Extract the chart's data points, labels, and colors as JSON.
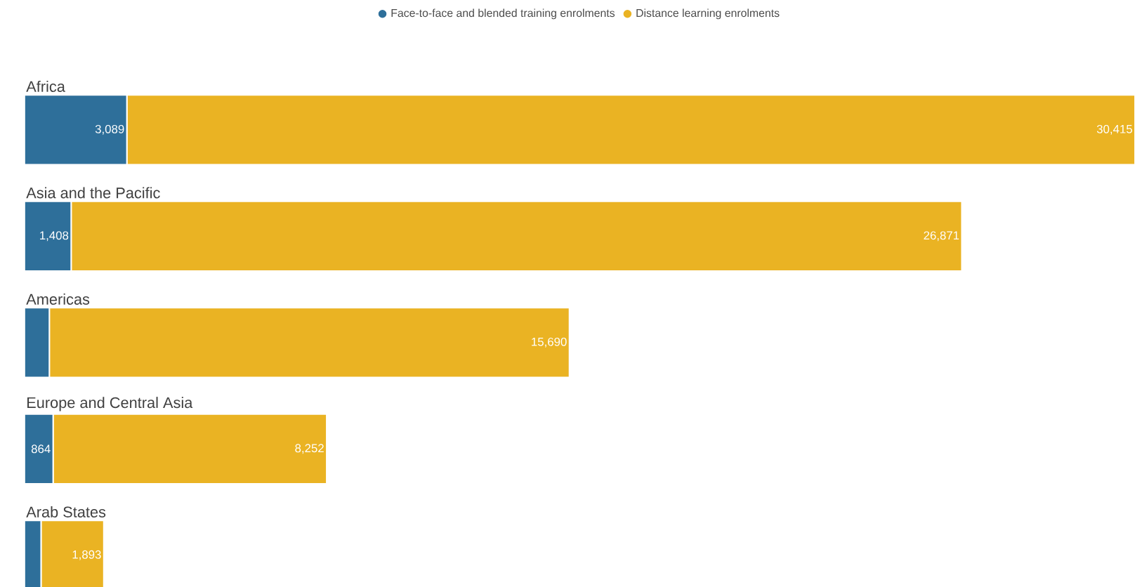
{
  "chart_data": {
    "type": "bar",
    "orientation": "horizontal",
    "stacked": true,
    "legend": "top",
    "categories": [
      "Africa",
      "Asia and the Pacific",
      "Americas",
      "Europe and Central Asia",
      "Arab States"
    ],
    "series": [
      {
        "name": "Face-to-face and blended training enrolments",
        "color": "#2e6f9a",
        "values": [
          3089,
          1408,
          750,
          864,
          500
        ],
        "value_labels": [
          "3,089",
          "1,408",
          null,
          "864",
          null
        ]
      },
      {
        "name": "Distance learning enrolments",
        "color": "#eab323",
        "values": [
          30415,
          26871,
          15690,
          8252,
          1893
        ],
        "value_labels": [
          "30,415",
          "26,871",
          "15,690",
          "8,252",
          "1,893"
        ]
      }
    ]
  }
}
